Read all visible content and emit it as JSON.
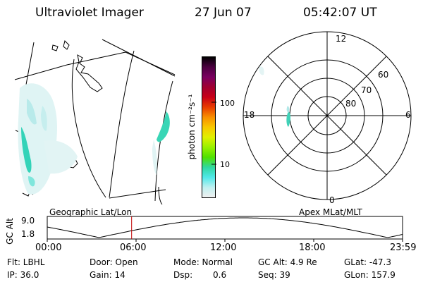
{
  "header": {
    "instrument": "Ultraviolet Imager",
    "date": "27 Jun 07",
    "time": "05:42:07 UT"
  },
  "colorbar": {
    "unit_label": "photon cm⁻²s⁻¹",
    "ticks": [
      "100",
      "10"
    ],
    "colors": [
      "#000000",
      "#4b0040",
      "#7a0060",
      "#a00030",
      "#c80018",
      "#e83c00",
      "#f89000",
      "#f8c800",
      "#e0f000",
      "#98f000",
      "#50e000",
      "#30d8a0",
      "#50e8e8",
      "#c0f0f0",
      "#f0f0f0"
    ]
  },
  "polar_plot": {
    "mlt_labels": {
      "top": "12",
      "left": "18",
      "right": "6",
      "bottom": "0"
    },
    "lat_labels": [
      "60",
      "70",
      "80"
    ]
  },
  "timeline": {
    "left_label": "Geographic Lat/Lon",
    "right_label": "Apex MLat/MLT",
    "axis_title": "GC Alt",
    "y_max": "9.0",
    "y_min": "1.8",
    "x_ticks": [
      "00:00",
      "06:00",
      "12:00",
      "18:00",
      "23:59"
    ],
    "marker_time": "05:42"
  },
  "info": {
    "flt": "Flt: LBHL",
    "door": "Door: Open",
    "mode": "Mode: Normal",
    "gc_alt": "GC Alt: 4.9 Re",
    "glat": "GLat: -47.3",
    "ip": "IP: 36.0",
    "gain": "Gain: 14",
    "dsp_label": "Dsp:",
    "dsp_value": "0.6",
    "seq": "Seq: 39",
    "glon": "GLon: 157.9"
  }
}
